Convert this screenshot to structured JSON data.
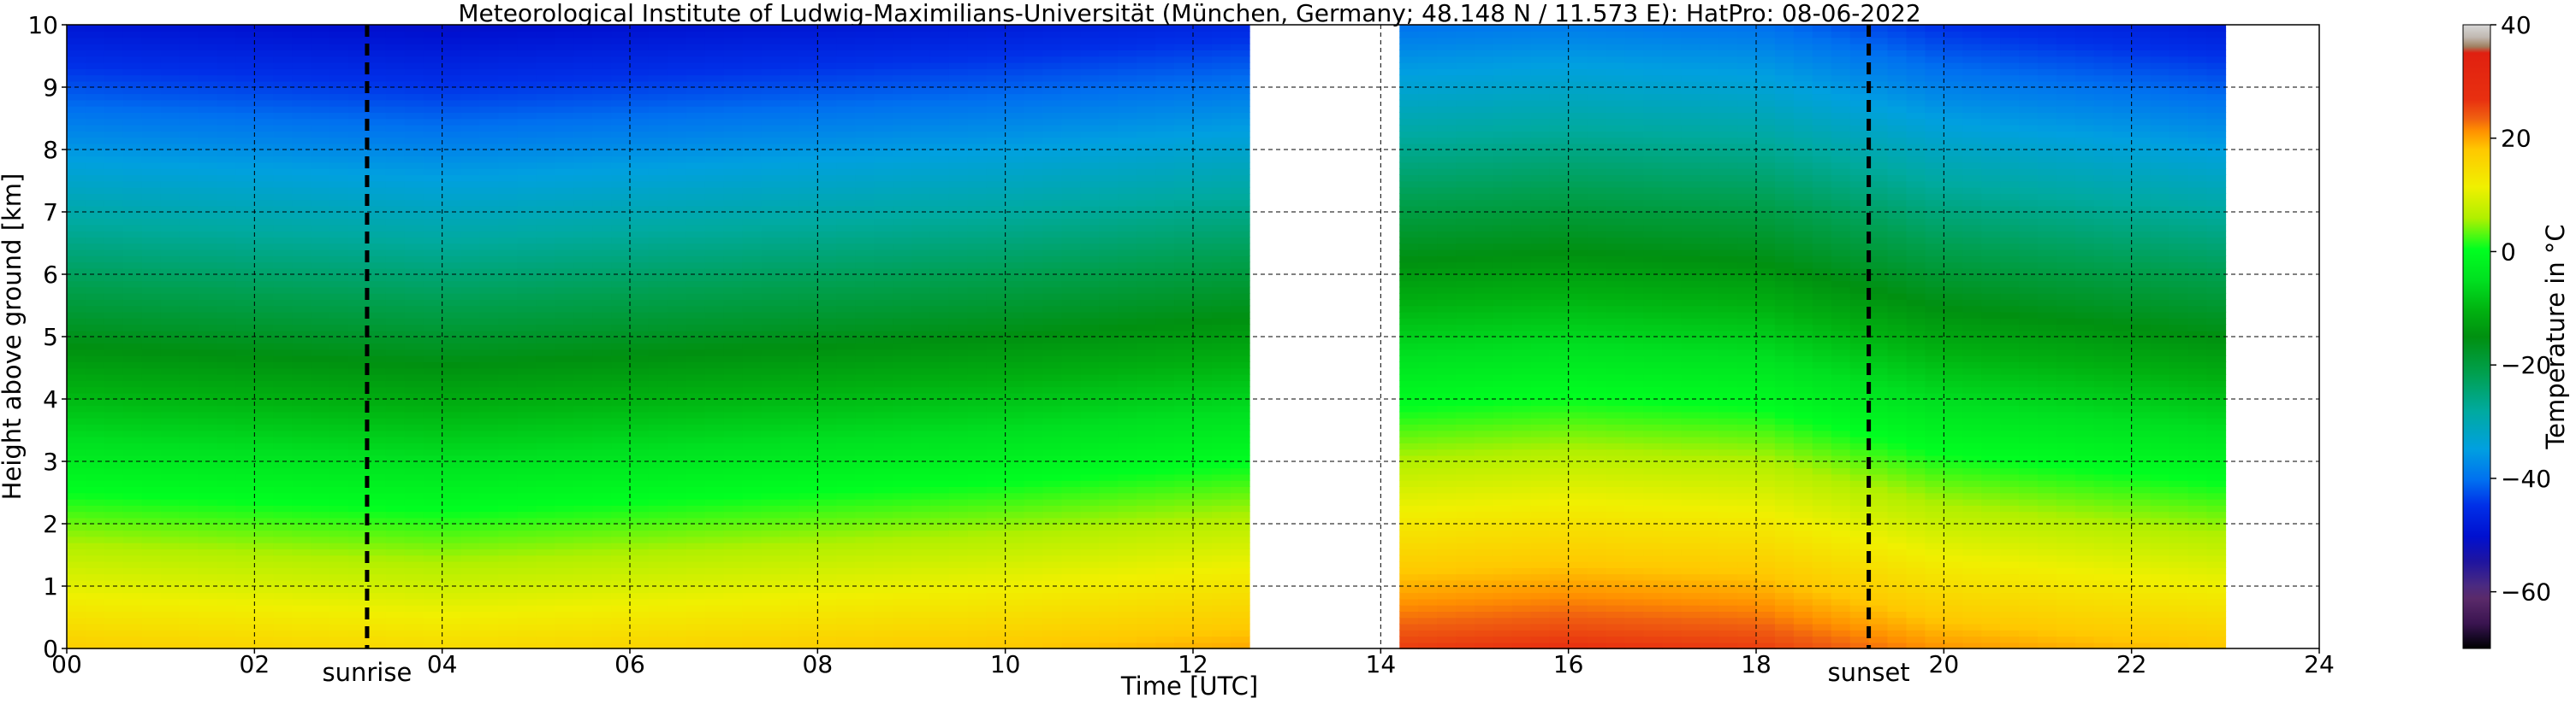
{
  "chart_data": {
    "type": "heatmap",
    "title": "Meteorological Institute of Ludwig-Maximilians-Universität (München, Germany; 48.148 N / 11.573 E):    HatPro: 08-06-2022",
    "xlabel": "Time [UTC]",
    "ylabel": "Height above ground [km]",
    "colorbar_label": "Temperature in °C",
    "xlim": [
      0,
      24
    ],
    "ylim": [
      0,
      10
    ],
    "x_ticks": [
      {
        "value": 0,
        "label": "00"
      },
      {
        "value": 2,
        "label": "02"
      },
      {
        "value": 4,
        "label": "04"
      },
      {
        "value": 6,
        "label": "06"
      },
      {
        "value": 8,
        "label": "08"
      },
      {
        "value": 10,
        "label": "10"
      },
      {
        "value": 12,
        "label": "12"
      },
      {
        "value": 14,
        "label": "14"
      },
      {
        "value": 16,
        "label": "16"
      },
      {
        "value": 18,
        "label": "18"
      },
      {
        "value": 20,
        "label": "20"
      },
      {
        "value": 22,
        "label": "22"
      },
      {
        "value": 24,
        "label": "24"
      }
    ],
    "y_ticks": [
      0,
      1,
      2,
      3,
      4,
      5,
      6,
      7,
      8,
      9,
      10
    ],
    "grid": true,
    "clim": [
      -70,
      40
    ],
    "colorbar_ticks": [
      -60,
      -40,
      -20,
      0,
      20,
      40
    ],
    "data_segments": [
      {
        "start": 0.0,
        "end": 12.6
      },
      {
        "start": 14.2,
        "end": 23.0
      }
    ],
    "surface_temperature": [
      {
        "time": 0,
        "value": 17
      },
      {
        "time": 2,
        "value": 16
      },
      {
        "time": 4,
        "value": 15
      },
      {
        "time": 6,
        "value": 16
      },
      {
        "time": 8,
        "value": 17
      },
      {
        "time": 10,
        "value": 18
      },
      {
        "time": 12.6,
        "value": 20
      },
      {
        "time": 14.2,
        "value": 26
      },
      {
        "time": 16,
        "value": 27
      },
      {
        "time": 18,
        "value": 26
      },
      {
        "time": 20,
        "value": 21
      },
      {
        "time": 23,
        "value": 18
      }
    ],
    "lapse_rate_c_per_km": -6.6,
    "vertical_lines": [
      {
        "x": 3.2,
        "label": "sunrise",
        "style": "dashed"
      },
      {
        "x": 19.2,
        "label": "sunset",
        "style": "dashed"
      }
    ]
  }
}
